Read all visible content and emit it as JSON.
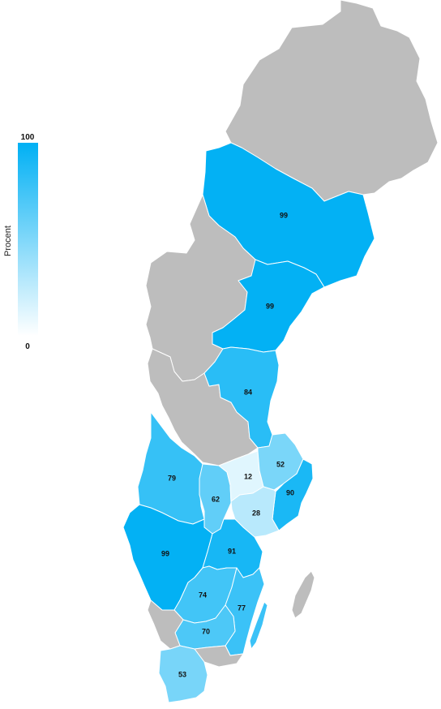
{
  "legend": {
    "title": "Procent",
    "max_label": "100",
    "min_label": "0",
    "color_high": "#00b0f4",
    "color_low": "#ffffff"
  },
  "no_data_color": "#bdbdbd",
  "regions": [
    {
      "id": "norrbotten",
      "value": null
    },
    {
      "id": "vasterbotten",
      "value": "99"
    },
    {
      "id": "vasternorrland",
      "value": "99"
    },
    {
      "id": "jamtland",
      "value": null
    },
    {
      "id": "gavleborg",
      "value": "84"
    },
    {
      "id": "dalarna",
      "value": null
    },
    {
      "id": "varmland",
      "value": "79"
    },
    {
      "id": "orebro",
      "value": "62"
    },
    {
      "id": "vastmanland",
      "value": "12"
    },
    {
      "id": "uppsala",
      "value": "52"
    },
    {
      "id": "stockholm",
      "value": "90"
    },
    {
      "id": "sodermanland",
      "value": "28"
    },
    {
      "id": "vastra-gotaland",
      "value": "99"
    },
    {
      "id": "ostergotland",
      "value": "91"
    },
    {
      "id": "jonkoping",
      "value": "74"
    },
    {
      "id": "kalmar",
      "value": "77"
    },
    {
      "id": "kronoberg",
      "value": "70"
    },
    {
      "id": "halland",
      "value": null
    },
    {
      "id": "blekinge",
      "value": null
    },
    {
      "id": "skane",
      "value": "53"
    },
    {
      "id": "gotland",
      "value": null
    },
    {
      "id": "oland",
      "value": "77"
    }
  ]
}
